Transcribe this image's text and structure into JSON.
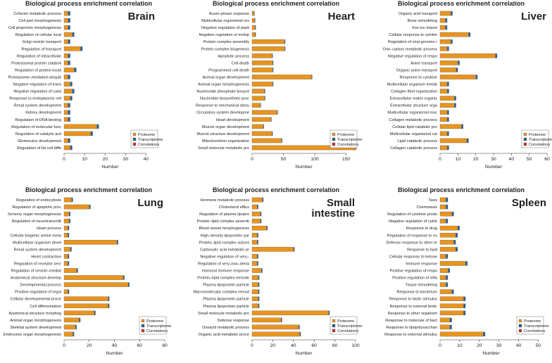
{
  "colors": {
    "proteome": "#E8941E",
    "transcriptome": "#2E5F8C",
    "correlations": "#C8342A",
    "axis": "#333333"
  },
  "legend_labels": [
    "Proteome",
    "Transcriptome",
    "Correlations"
  ],
  "chart_data": [
    {
      "type": "bar",
      "orientation": "horizontal",
      "title": "Biological process enrichment correlation",
      "tissue": "Brain",
      "xlabel": "Number",
      "xlim": [
        0,
        45
      ],
      "xticks": [
        0,
        10,
        20,
        30,
        40
      ],
      "categories": [
        "Cofactor metabolic process",
        "Cell part morphogenesis",
        "Cell projection morphogenesis",
        "Regulation of cellular local",
        "Golgi vesicle transport",
        "Regulation of transport",
        "Regulation of intracellular",
        "Proteasomal protein cataboli",
        "Regulation of protein locali",
        "Proteasome–mediated ubiquiti",
        "Negative regulation of trans",
        "Negative regulation of catal",
        "Response to endoplasmic reti",
        "Renal system development",
        "Kidney development",
        "Regulation of DNA binding",
        "Regulation of molecular func",
        "Regulation of catalytic acti",
        "Glomerulus development",
        "Regulation of fat cell diffe"
      ],
      "series": [
        {
          "name": "Proteome",
          "values": [
            2,
            2,
            2,
            4,
            2,
            8,
            2,
            2,
            5,
            2,
            3,
            4,
            3,
            2,
            2,
            2,
            16,
            13,
            2,
            3
          ]
        },
        {
          "name": "Transcriptome",
          "values": [
            1,
            1,
            1,
            1,
            1,
            1,
            1,
            1,
            1,
            1,
            1,
            1,
            1,
            1,
            1,
            1,
            1,
            1,
            1,
            1
          ]
        },
        {
          "name": "Correlations",
          "values": [
            0,
            0,
            0,
            0,
            0,
            0,
            0,
            0,
            0,
            0,
            0,
            0,
            0,
            0,
            0,
            0,
            0,
            0,
            0,
            0
          ]
        }
      ]
    },
    {
      "type": "bar",
      "orientation": "horizontal",
      "title": "Biological process enrichment correlation",
      "tissue": "Heart",
      "xlabel": "Number",
      "xlim": [
        0,
        165
      ],
      "xticks": [
        0,
        50,
        100,
        150
      ],
      "categories": [
        "Acute–phase response",
        "Multicellular organismal res",
        "Negative regulation of pepti",
        "Negative regulation of endop",
        "Protein complex assembly",
        "Protein complex biogenesis",
        "Apoptotic process",
        "Cell death",
        "Programmed cell death",
        "Animal organ development",
        "Animal organ morphogenesis",
        "Nucleoside phosphate biosynt",
        "Nucleotide biosynthetic proc",
        "Response to mechanical stimu",
        "Circulatory system developme",
        "Heart development",
        "Muscle organ development",
        "Muscle structure development",
        "Mitochondrion organization",
        "Small molecule metabolic pro"
      ],
      "series": [
        {
          "name": "Proteome",
          "values": [
            3,
            4,
            5,
            5,
            52,
            52,
            32,
            33,
            33,
            95,
            33,
            20,
            20,
            13,
            40,
            30,
            18,
            32,
            47,
            165
          ]
        },
        {
          "name": "Transcriptome",
          "values": [
            1,
            1,
            1,
            1,
            1,
            1,
            1,
            1,
            1,
            1,
            1,
            1,
            1,
            1,
            1,
            1,
            1,
            1,
            1,
            1
          ]
        },
        {
          "name": "Correlations",
          "values": [
            0,
            0,
            0,
            0,
            0,
            0,
            0,
            0,
            0,
            0,
            0,
            0,
            0,
            0,
            0,
            0,
            0,
            0,
            0,
            0
          ]
        }
      ]
    },
    {
      "type": "bar",
      "orientation": "horizontal",
      "title": "Biological process enrichment correlation",
      "tissue": "Liver",
      "xlabel": "Number",
      "xlim": [
        0,
        60
      ],
      "xticks": [
        0,
        10,
        20,
        30,
        40,
        50,
        60
      ],
      "categories": [
        "Organic acid transport",
        "Bone remodeling",
        "Iron ion import",
        "Cellular response to cytokin",
        "Regulation of viral genome r",
        "One–carbon metabolic process",
        "Negative regulation of respo",
        "Anion transport",
        "Organic anion transport",
        "Response to cytokine",
        "Multicellular organism metab",
        "Collagen fibril organization",
        "Extracellular matrix organiz",
        "Extracellular structure orga",
        "Multicellular organismal mac",
        "Collagen metabolic process",
        "Cellular lipid catabolic pro",
        "Multicellular organismal cat",
        "Lipid catabolic process",
        "Collagen catabolic process"
      ],
      "series": [
        {
          "name": "Proteome",
          "values": [
            6,
            3,
            3,
            16,
            6,
            4,
            31,
            10,
            9,
            20,
            4,
            4,
            8,
            8,
            4,
            4,
            12,
            4,
            15,
            4
          ]
        },
        {
          "name": "Transcriptome",
          "values": [
            1,
            1,
            1,
            1,
            1,
            1,
            1,
            1,
            1,
            1,
            1,
            1,
            1,
            1,
            1,
            1,
            1,
            1,
            1,
            1
          ]
        },
        {
          "name": "Correlations",
          "values": [
            0,
            0,
            0,
            0,
            0,
            0,
            0,
            0,
            0,
            0,
            0,
            0,
            0,
            0,
            0,
            0,
            0,
            0,
            0,
            0
          ]
        }
      ]
    },
    {
      "type": "bar",
      "orientation": "horizontal",
      "title": "Biological process enrichment correlation",
      "tissue": "Lung",
      "xlabel": "Number",
      "xlim": [
        0,
        80
      ],
      "xticks": [
        0,
        20,
        40,
        60,
        80
      ],
      "categories": [
        "Regulation of endocytosis",
        "Regulation of apoptotic proc",
        "Sensory organ morphogenesis",
        "Regulation of neurotransmitt",
        "Heart process",
        "Cellular biogenic amine meta",
        "Multicellular organism devel",
        "Renal system development",
        "Heart contraction",
        "Regulation of receptor secr",
        "Regulation of vesicle–mediat",
        "Anatomical structure develop",
        "Developmental process",
        "Positive regulation of regul",
        "Cellular developmental proce",
        "Cell differentiation",
        "Anatomical structure morphog",
        "Animal organ morphogenesis",
        "Skeletal system development",
        "Embryonic organ morphogenesis"
      ],
      "series": [
        {
          "name": "Proteome",
          "values": [
            6,
            20,
            4,
            4,
            3,
            3,
            42,
            5,
            3,
            3,
            10,
            47,
            51,
            3,
            35,
            35,
            24,
            12,
            9,
            7
          ]
        },
        {
          "name": "Transcriptome",
          "values": [
            1,
            1,
            1,
            1,
            1,
            1,
            1,
            1,
            1,
            1,
            1,
            1,
            1,
            1,
            1,
            1,
            1,
            1,
            1,
            1
          ]
        },
        {
          "name": "Correlations",
          "values": [
            0,
            0,
            0,
            0,
            0,
            0,
            0,
            0,
            0,
            0,
            0,
            0,
            0,
            0,
            0,
            0,
            0,
            0,
            0,
            0
          ]
        }
      ]
    },
    {
      "type": "bar",
      "orientation": "horizontal",
      "title": "Biological process enrichment correlation",
      "tissue": "Small intestine",
      "xlabel": "Number",
      "xlim": [
        0,
        100
      ],
      "xticks": [
        0,
        20,
        40,
        60,
        80,
        100
      ],
      "categories": [
        "Hormone metabolic process",
        "Cholesterol efflux",
        "Regulation of plasma lipopro",
        "Protein–lipid complex assemb",
        "Blood vessel morphogenesis",
        "High–density lipoprotein par",
        "Protein–lipid complex subuni",
        "Carboxylic acid metabolic pr",
        "Negative regulation of very–",
        "Regulation of very–low–densi",
        "Humoral immune response",
        "Protein–lipid complex remode",
        "Plasma lipoprotein particle",
        "Macromolecular complex remod",
        "Plasma lipoprotein particle",
        "Plasma lipoprotein particle",
        "Small molecule metabolic pro",
        "Defense response",
        "Oxoacid metabolic process",
        "Organic acid metabolic proce"
      ],
      "series": [
        {
          "name": "Proteome",
          "values": [
            10,
            5,
            8,
            8,
            14,
            5,
            5,
            40,
            5,
            5,
            9,
            6,
            6,
            6,
            6,
            6,
            74,
            28,
            45,
            46
          ]
        },
        {
          "name": "Transcriptome",
          "values": [
            1,
            1,
            1,
            1,
            1,
            1,
            1,
            1,
            1,
            1,
            1,
            1,
            1,
            1,
            1,
            1,
            1,
            1,
            1,
            1
          ]
        },
        {
          "name": "Correlations",
          "values": [
            0,
            0,
            0,
            0,
            0,
            0,
            0,
            0,
            0,
            0,
            0,
            0,
            0,
            0,
            0,
            0,
            0,
            0,
            0,
            0
          ]
        }
      ]
    },
    {
      "type": "bar",
      "orientation": "horizontal",
      "title": "Biological process enrichment correlation",
      "tissue": "Spleen",
      "xlabel": "Number",
      "xlim": [
        0,
        52
      ],
      "xticks": [
        0,
        10,
        20,
        30,
        40,
        50
      ],
      "categories": [
        "Taxis",
        "Chemotaxis",
        "Regulation of cytokine produ",
        "Negative regulation of cytok",
        "Response to drug",
        "Regulation of response to ex",
        "Defense response to other or",
        "Response to lipid",
        "Cellular response to ketone",
        "Immune response",
        "Positive regulation of respo",
        "Positive regulation of infla",
        "Tissue remodeling",
        "Response to bacterium",
        "Response to biotic stimulus",
        "Response to external biotic",
        "Response to other organism",
        "Response to molecule of bact",
        "Response to lipopolysacchari",
        "Response to external stimulus"
      ],
      "series": [
        {
          "name": "Proteome",
          "values": [
            3,
            3,
            6,
            3,
            9,
            8,
            7,
            8,
            3,
            13,
            4,
            3,
            3,
            6,
            12,
            12,
            12,
            5,
            5,
            22
          ]
        },
        {
          "name": "Transcriptome",
          "values": [
            1,
            1,
            1,
            1,
            1,
            1,
            1,
            1,
            1,
            1,
            1,
            1,
            1,
            1,
            1,
            1,
            1,
            1,
            1,
            1
          ]
        },
        {
          "name": "Correlations",
          "values": [
            0,
            0,
            0,
            0,
            0,
            0,
            0,
            0,
            0,
            0,
            0,
            0,
            0,
            0,
            0,
            0,
            0,
            0,
            0,
            0
          ]
        }
      ]
    }
  ]
}
